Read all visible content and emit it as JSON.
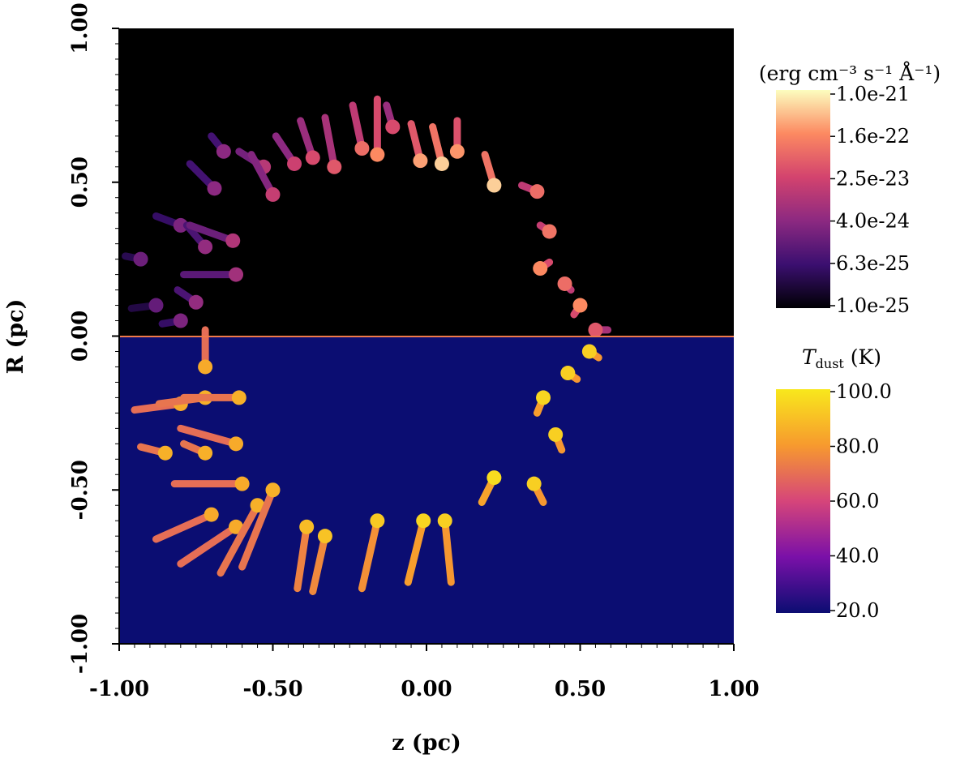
{
  "chart_data": {
    "type": "heatmap",
    "title": "",
    "xlabel": "z (pc)",
    "ylabel": "R (pc)",
    "xlim": [
      -1.0,
      1.0
    ],
    "ylim": [
      -1.0,
      1.0
    ],
    "xticks": [
      "-1.00",
      "-0.50",
      "0.00",
      "0.50",
      "1.00"
    ],
    "yticks": [
      "1.00",
      "0.50",
      "0.00",
      "-0.50",
      "-1.00"
    ],
    "grid": false,
    "upper_half": {
      "quantity": "emissivity",
      "background_color": "#000000",
      "colorbar": {
        "title": "(erg cm⁻³ s⁻¹ Å⁻¹)",
        "scale": "log",
        "ticks": [
          "1.0e-21",
          "1.6e-22",
          "2.5e-23",
          "4.0e-24",
          "6.3e-25",
          "1.0e-25"
        ],
        "colors": [
          "#fcfdbf",
          "#fc8961",
          "#d3436e",
          "#8c2981",
          "#3b0f70",
          "#000004"
        ]
      }
    },
    "lower_half": {
      "quantity": "dust temperature",
      "background_color": "#0b0d72",
      "colorbar": {
        "title_main": "T",
        "title_sub": "dust",
        "title_unit": " (K)",
        "ticks": [
          "100.0",
          "80.0",
          "60.0",
          "40.0",
          "20.0"
        ],
        "colors": [
          "#f8e81c",
          "#f79a2e",
          "#d6457a",
          "#7a10a8",
          "#0b0d72"
        ]
      }
    },
    "clumps_upper": [
      {
        "z": -0.93,
        "r": 0.25,
        "dz": -0.05,
        "dr": 0.01,
        "v": 0.32
      },
      {
        "z": -0.88,
        "r": 0.1,
        "dz": -0.08,
        "dr": -0.01,
        "v": 0.3
      },
      {
        "z": -0.8,
        "r": 0.05,
        "dz": -0.06,
        "dr": -0.01,
        "v": 0.36
      },
      {
        "z": -0.75,
        "r": 0.11,
        "dz": -0.06,
        "dr": 0.04,
        "v": 0.42
      },
      {
        "z": -0.8,
        "r": 0.36,
        "dz": -0.08,
        "dr": 0.03,
        "v": 0.36
      },
      {
        "z": -0.72,
        "r": 0.29,
        "dz": -0.06,
        "dr": 0.07,
        "v": 0.42
      },
      {
        "z": -0.62,
        "r": 0.2,
        "dz": -0.17,
        "dr": 0.0,
        "v": 0.46
      },
      {
        "z": -0.63,
        "r": 0.31,
        "dz": -0.14,
        "dr": 0.05,
        "v": 0.5
      },
      {
        "z": -0.69,
        "r": 0.48,
        "dz": -0.08,
        "dr": 0.08,
        "v": 0.4
      },
      {
        "z": -0.66,
        "r": 0.6,
        "dz": -0.04,
        "dr": 0.05,
        "v": 0.4
      },
      {
        "z": -0.53,
        "r": 0.55,
        "dz": -0.08,
        "dr": 0.05,
        "v": 0.52
      },
      {
        "z": -0.5,
        "r": 0.46,
        "dz": -0.07,
        "dr": 0.13,
        "v": 0.56
      },
      {
        "z": -0.43,
        "r": 0.56,
        "dz": -0.06,
        "dr": 0.09,
        "v": 0.58
      },
      {
        "z": -0.37,
        "r": 0.58,
        "dz": -0.04,
        "dr": 0.12,
        "v": 0.62
      },
      {
        "z": -0.3,
        "r": 0.55,
        "dz": -0.03,
        "dr": 0.16,
        "v": 0.66
      },
      {
        "z": -0.21,
        "r": 0.61,
        "dz": -0.03,
        "dr": 0.14,
        "v": 0.72
      },
      {
        "z": -0.16,
        "r": 0.59,
        "dz": 0.0,
        "dr": 0.18,
        "v": 0.8
      },
      {
        "z": -0.11,
        "r": 0.68,
        "dz": -0.02,
        "dr": 0.07,
        "v": 0.62
      },
      {
        "z": -0.02,
        "r": 0.57,
        "dz": -0.03,
        "dr": 0.12,
        "v": 0.84
      },
      {
        "z": 0.05,
        "r": 0.56,
        "dz": -0.03,
        "dr": 0.12,
        "v": 0.92
      },
      {
        "z": 0.1,
        "r": 0.6,
        "dz": 0.0,
        "dr": 0.1,
        "v": 0.82
      },
      {
        "z": 0.22,
        "r": 0.49,
        "dz": -0.03,
        "dr": 0.1,
        "v": 0.92
      },
      {
        "z": 0.36,
        "r": 0.47,
        "dz": -0.05,
        "dr": 0.02,
        "v": 0.72
      },
      {
        "z": 0.4,
        "r": 0.34,
        "dz": -0.03,
        "dr": 0.02,
        "v": 0.74
      },
      {
        "z": 0.37,
        "r": 0.22,
        "dz": 0.03,
        "dr": 0.02,
        "v": 0.8
      },
      {
        "z": 0.45,
        "r": 0.17,
        "dz": 0.02,
        "dr": -0.02,
        "v": 0.72
      },
      {
        "z": 0.5,
        "r": 0.1,
        "dz": -0.02,
        "dr": -0.03,
        "v": 0.8
      },
      {
        "z": 0.55,
        "r": 0.02,
        "dz": 0.04,
        "dr": 0.0,
        "v": 0.66
      }
    ],
    "clumps_lower": [
      {
        "z": -0.72,
        "r": -0.1,
        "dz": 0.0,
        "dr": 0.12,
        "v": 0.8
      },
      {
        "z": -0.8,
        "r": -0.22,
        "dz": -0.15,
        "dr": -0.02,
        "v": 0.8
      },
      {
        "z": -0.72,
        "r": -0.2,
        "dz": -0.15,
        "dr": -0.02,
        "v": 0.82
      },
      {
        "z": -0.61,
        "r": -0.2,
        "dz": -0.18,
        "dr": 0.0,
        "v": 0.82
      },
      {
        "z": -0.85,
        "r": -0.38,
        "dz": -0.08,
        "dr": 0.02,
        "v": 0.82
      },
      {
        "z": -0.72,
        "r": -0.38,
        "dz": -0.07,
        "dr": 0.03,
        "v": 0.82
      },
      {
        "z": -0.62,
        "r": -0.35,
        "dz": -0.18,
        "dr": 0.05,
        "v": 0.8
      },
      {
        "z": -0.6,
        "r": -0.48,
        "dz": -0.22,
        "dr": 0.0,
        "v": 0.8
      },
      {
        "z": -0.7,
        "r": -0.58,
        "dz": -0.18,
        "dr": -0.08,
        "v": 0.8
      },
      {
        "z": -0.62,
        "r": -0.62,
        "dz": -0.18,
        "dr": -0.12,
        "v": 0.8
      },
      {
        "z": -0.55,
        "r": -0.55,
        "dz": -0.12,
        "dr": -0.22,
        "v": 0.82
      },
      {
        "z": -0.5,
        "r": -0.5,
        "dz": -0.1,
        "dr": -0.25,
        "v": 0.82
      },
      {
        "z": -0.39,
        "r": -0.62,
        "dz": -0.03,
        "dr": -0.2,
        "v": 0.86
      },
      {
        "z": -0.33,
        "r": -0.65,
        "dz": -0.04,
        "dr": -0.18,
        "v": 0.88
      },
      {
        "z": -0.16,
        "r": -0.6,
        "dz": -0.05,
        "dr": -0.22,
        "v": 0.9
      },
      {
        "z": -0.01,
        "r": -0.6,
        "dz": -0.05,
        "dr": -0.2,
        "v": 0.94
      },
      {
        "z": 0.06,
        "r": -0.6,
        "dz": 0.02,
        "dr": -0.2,
        "v": 0.92
      },
      {
        "z": 0.22,
        "r": -0.46,
        "dz": -0.04,
        "dr": -0.08,
        "v": 0.96
      },
      {
        "z": 0.35,
        "r": -0.48,
        "dz": 0.03,
        "dr": -0.06,
        "v": 0.92
      },
      {
        "z": 0.42,
        "r": -0.32,
        "dz": 0.02,
        "dr": -0.05,
        "v": 0.92
      },
      {
        "z": 0.38,
        "r": -0.2,
        "dz": -0.02,
        "dr": -0.05,
        "v": 0.94
      },
      {
        "z": 0.46,
        "r": -0.12,
        "dz": 0.03,
        "dr": -0.02,
        "v": 0.92
      },
      {
        "z": 0.53,
        "r": -0.05,
        "dz": 0.03,
        "dr": -0.02,
        "v": 0.92
      }
    ]
  }
}
